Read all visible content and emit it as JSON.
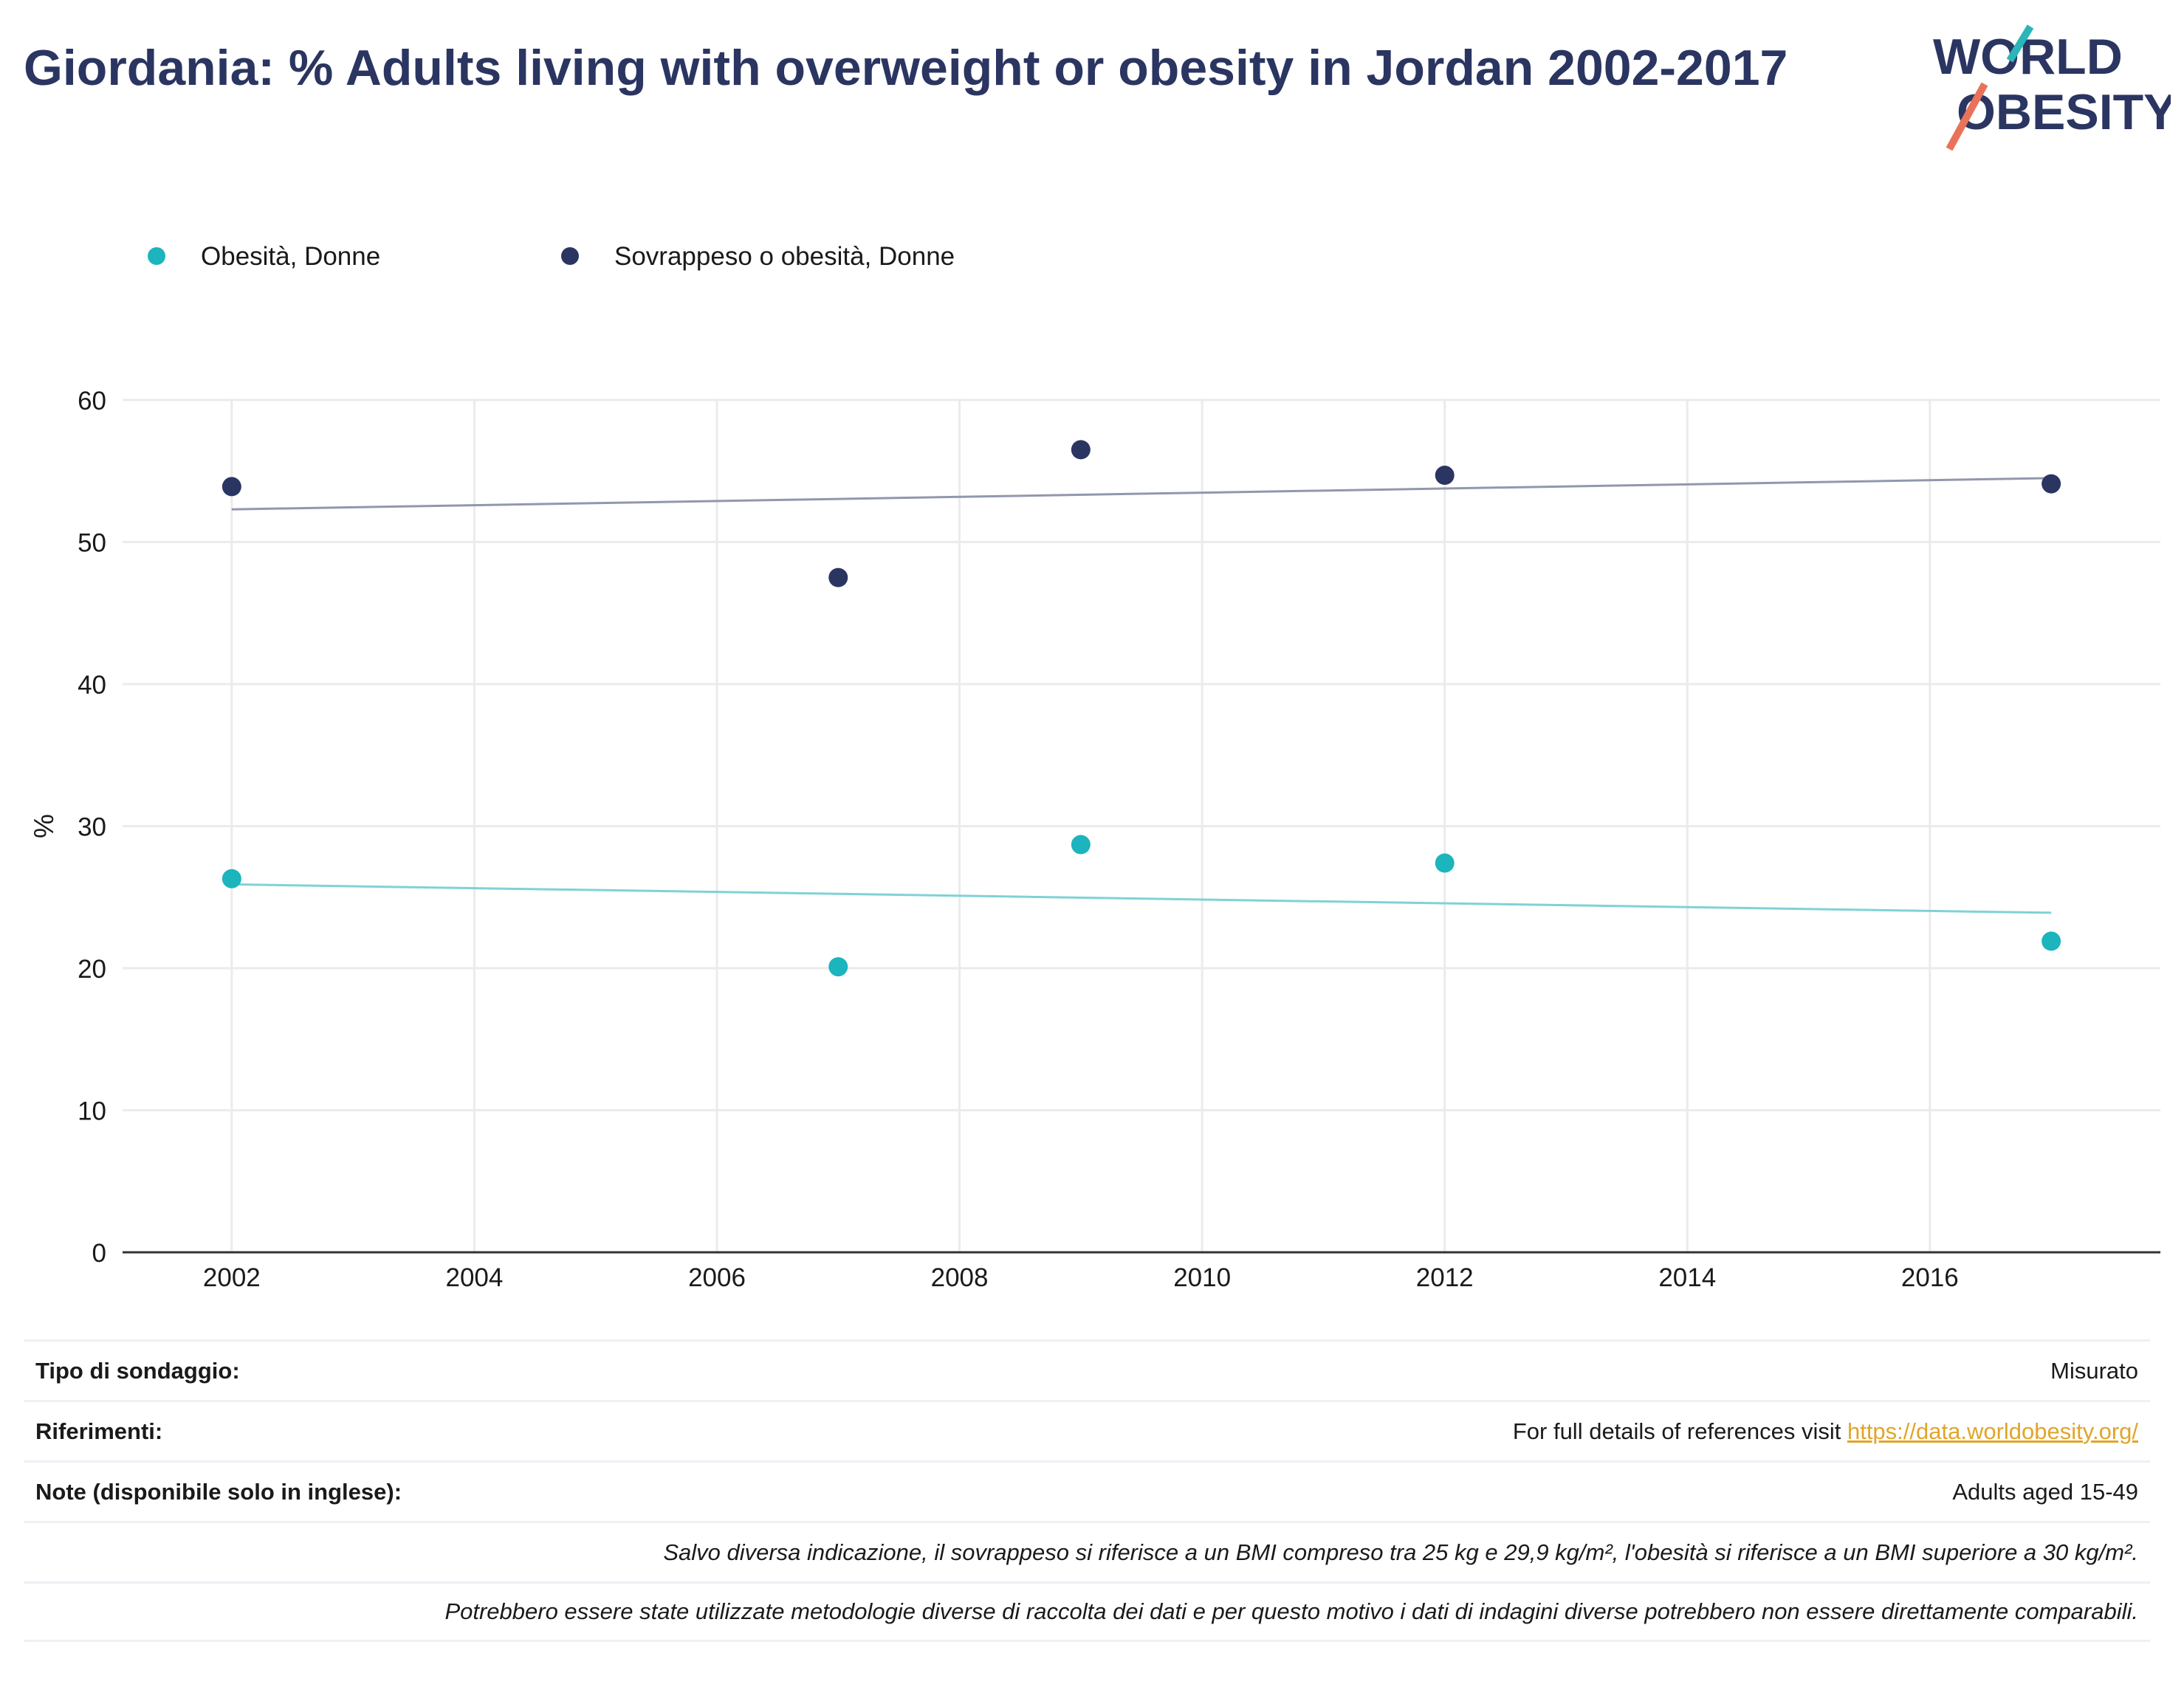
{
  "header": {
    "title": "Giordania: % Adults living with overweight or obesity in Jordan 2002-2017"
  },
  "logo": {
    "line1": "WORLD",
    "line2": "OBESITY",
    "accent_teal": "#2bb5b8",
    "accent_coral": "#e8735a"
  },
  "colors": {
    "obesity": "#1cb4bd",
    "overweight": "#2b3561",
    "obesity_trend": "#7fd2d6",
    "overweight_trend": "#9297ad",
    "grid": "#ebebeb",
    "axis": "#333333"
  },
  "chart_data": {
    "type": "scatter",
    "title": "Giordania: % Adults living with overweight or obesity in Jordan 2002-2017",
    "xlabel": "",
    "ylabel": "%",
    "xlim": [
      2001.1,
      2017.9
    ],
    "ylim": [
      0,
      60
    ],
    "xticks": [
      2002,
      2004,
      2006,
      2008,
      2010,
      2012,
      2014,
      2016
    ],
    "yticks": [
      0,
      10,
      20,
      30,
      40,
      50,
      60
    ],
    "grid": true,
    "legend": "top-left",
    "series": [
      {
        "name": "Obesità, Donne",
        "x": [
          2002,
          2007,
          2009,
          2012,
          2017
        ],
        "y": [
          26.3,
          20.1,
          28.7,
          27.4,
          21.9
        ],
        "trend": [
          25.9,
          23.9
        ]
      },
      {
        "name": "Sovrappeso o obesità, Donne",
        "x": [
          2002,
          2007,
          2009,
          2012,
          2017
        ],
        "y": [
          53.9,
          47.5,
          56.5,
          54.7,
          54.1
        ],
        "trend": [
          52.3,
          54.5
        ]
      }
    ]
  },
  "info": {
    "survey_label": "Tipo di sondaggio:",
    "survey_value": "Misurato",
    "refs_label": "Riferimenti:",
    "refs_text": "For full details of references visit ",
    "refs_link": "https://data.worldobesity.org/",
    "notes_label": "Note (disponibile solo in inglese):",
    "notes_value": "Adults aged 15-49",
    "bmi_note": "Salvo diversa indicazione, il sovrappeso si riferisce a un BMI compreso tra 25 kg e 29,9 kg/m², l'obesità si riferisce a un BMI superiore a 30 kg/m².",
    "method_note": "Potrebbero essere state utilizzate metodologie diverse di raccolta dei dati e per questo motivo i dati di indagini diverse potrebbero non essere direttamente comparabili."
  }
}
